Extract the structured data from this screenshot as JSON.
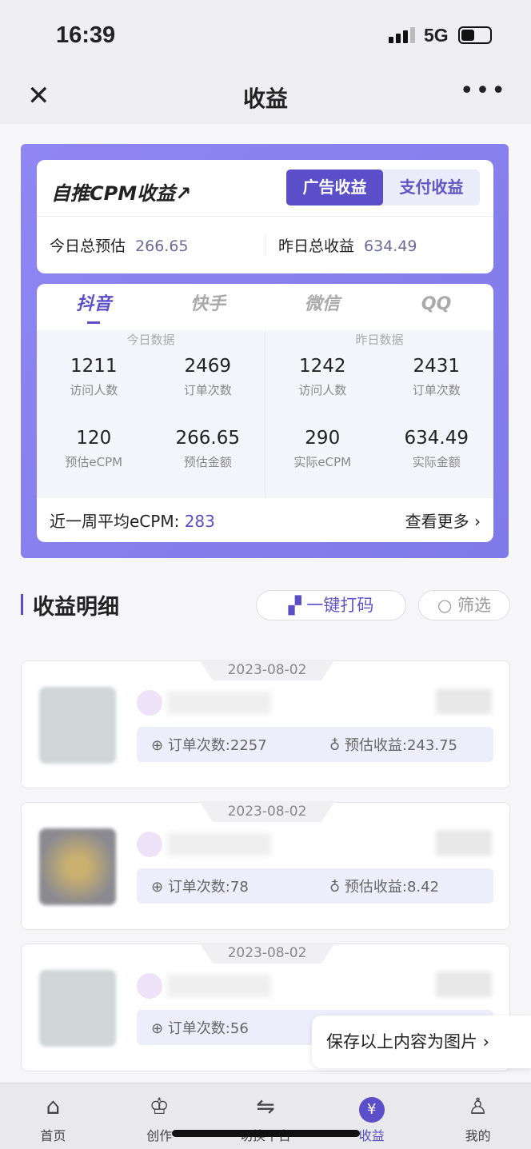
{
  "status": {
    "time": "16:39",
    "network": "5G"
  },
  "nav": {
    "title": "收益",
    "close_icon": "close-icon",
    "more_icon": "more-icon"
  },
  "summary": {
    "brand": "自推CPM收益",
    "segments": [
      "广告收益",
      "支付收益"
    ],
    "active_segment": "广告收益",
    "today_label": "今日总预估",
    "today_value": "266.65",
    "yesterday_label": "昨日总收益",
    "yesterday_value": "634.49"
  },
  "platforms": {
    "tabs": [
      "抖音",
      "快手",
      "微信",
      "QQ"
    ],
    "active": "抖音",
    "today": {
      "label": "今日数据",
      "cells": [
        {
          "value": "1211",
          "label": "访问人数"
        },
        {
          "value": "2469",
          "label": "订单次数"
        },
        {
          "value": "120",
          "label": "预估eCPM"
        },
        {
          "value": "266.65",
          "label": "预估金额"
        }
      ]
    },
    "yesterday": {
      "label": "昨日数据",
      "cells": [
        {
          "value": "1242",
          "label": "访问人数"
        },
        {
          "value": "2431",
          "label": "订单次数"
        },
        {
          "value": "290",
          "label": "实际eCPM"
        },
        {
          "value": "634.49",
          "label": "实际金额"
        }
      ]
    },
    "avg_label": "近一周平均eCPM:",
    "avg_value": "283",
    "more_label": "查看更多 ›"
  },
  "details": {
    "title": "收益明细",
    "mosaic_label": "一键打码",
    "filter_label": "筛选",
    "items": [
      {
        "date": "2023-08-02",
        "orders_label": "订单次数:",
        "orders": "2257",
        "income_label": "预估收益:",
        "income": "243.75"
      },
      {
        "date": "2023-08-02",
        "orders_label": "订单次数:",
        "orders": "78",
        "income_label": "预估收益:",
        "income": "8.42"
      },
      {
        "date": "2023-08-02",
        "orders_label": "订单次数:",
        "orders": "56",
        "income_label": "",
        "income": ""
      }
    ]
  },
  "save_popup": "保存以上内容为图片 ›",
  "tabbar": [
    {
      "label": "首页",
      "icon": "home-icon"
    },
    {
      "label": "创作",
      "icon": "crown-icon"
    },
    {
      "label": "切换平台",
      "icon": "switch-icon"
    },
    {
      "label": "收益",
      "icon": "yen-icon",
      "active": true
    },
    {
      "label": "我的",
      "icon": "user-icon"
    }
  ],
  "accent": "#5a4fc8"
}
